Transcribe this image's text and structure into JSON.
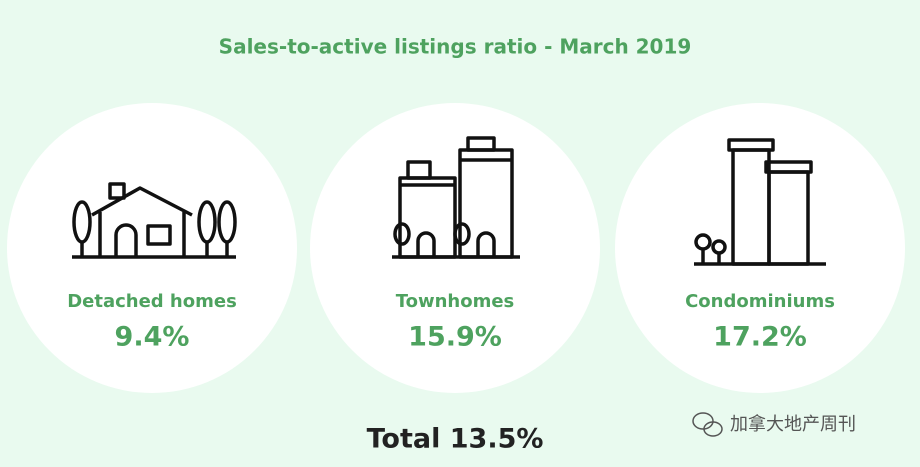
{
  "header": {
    "title": "Sales-to-active listings ratio - March 2019"
  },
  "items": [
    {
      "label": "Detached homes",
      "value": "9.4%"
    },
    {
      "label": "Townhomes",
      "value": "15.9%"
    },
    {
      "label": "Condominiums",
      "value": "17.2%"
    }
  ],
  "total": "Total 13.5%",
  "watermark": "加拿大地产周刊"
}
